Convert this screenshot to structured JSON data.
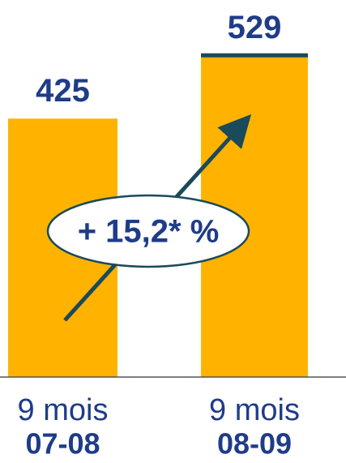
{
  "chart_data": {
    "type": "bar",
    "categories": [
      "9 mois",
      "9 mois"
    ],
    "category_sublabels": [
      "07-08",
      "08-09"
    ],
    "values": [
      425,
      529
    ],
    "color": "#FFB300",
    "annotation": "+ 15,2* %"
  }
}
